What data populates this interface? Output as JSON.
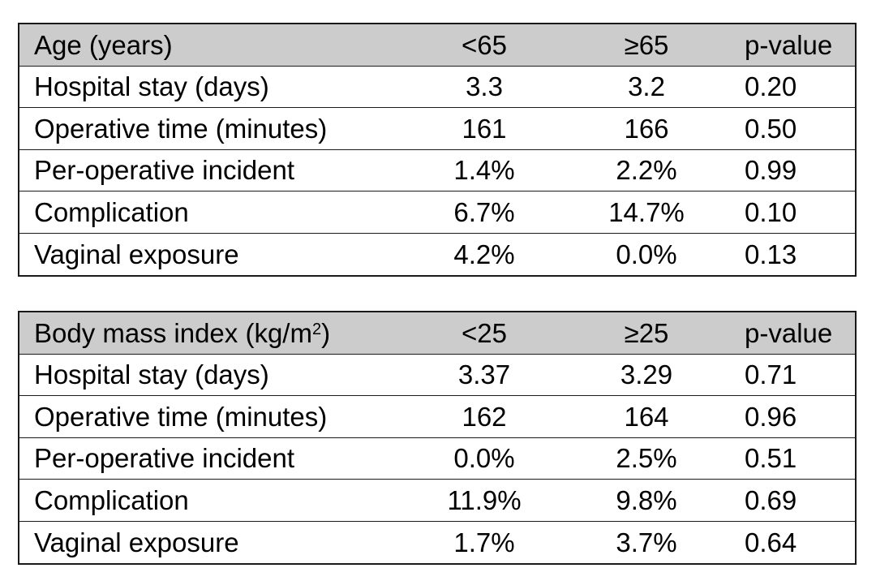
{
  "tables": [
    {
      "header": {
        "label": "Age (years)",
        "label_sup": "",
        "label_suffix": "",
        "g1": "<65",
        "g2": "≥65",
        "p": "p-value"
      },
      "rows": [
        {
          "label": "Hospital stay (days)",
          "g1": "3.3",
          "g2": "3.2",
          "p": "0.20"
        },
        {
          "label": "Operative time (minutes)",
          "g1": "161",
          "g2": "166",
          "p": "0.50"
        },
        {
          "label": "Per-operative incident",
          "g1": "1.4%",
          "g2": "2.2%",
          "p": "0.99"
        },
        {
          "label": "Complication",
          "g1": "6.7%",
          "g2": "14.7%",
          "p": "0.10"
        },
        {
          "label": "Vaginal exposure",
          "g1": "4.2%",
          "g2": "0.0%",
          "p": "0.13"
        }
      ]
    },
    {
      "header": {
        "label": "Body mass index (kg/m",
        "label_sup": "2",
        "label_suffix": ")",
        "g1": "<25",
        "g2": "≥25",
        "p": "p-value"
      },
      "rows": [
        {
          "label": "Hospital stay (days)",
          "g1": "3.37",
          "g2": "3.29",
          "p": "0.71"
        },
        {
          "label": "Operative time (minutes)",
          "g1": "162",
          "g2": "164",
          "p": "0.96"
        },
        {
          "label": "Per-operative incident",
          "g1": "0.0%",
          "g2": "2.5%",
          "p": "0.51"
        },
        {
          "label": "Complication",
          "g1": "11.9%",
          "g2": "9.8%",
          "p": "0.69"
        },
        {
          "label": "Vaginal exposure",
          "g1": "1.7%",
          "g2": "3.7%",
          "p": "0.64"
        }
      ]
    }
  ]
}
